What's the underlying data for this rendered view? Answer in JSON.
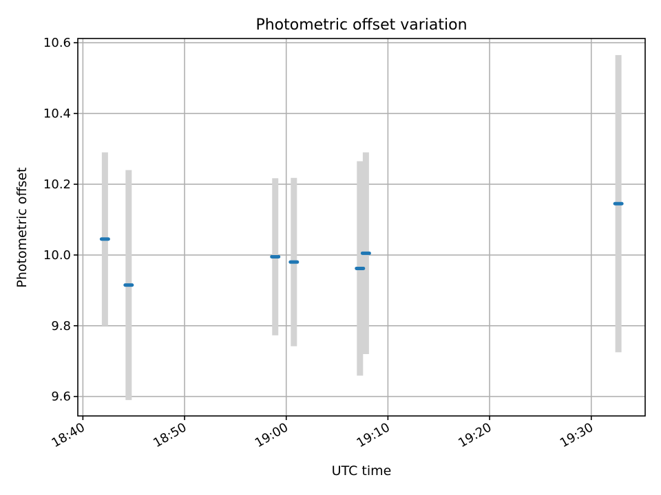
{
  "chart_data": {
    "type": "scatter",
    "title": "Photometric offset variation",
    "xlabel": "UTC time",
    "ylabel": "Photometric offset",
    "x_tick_labels": [
      "18:40",
      "18:50",
      "19:00",
      "19:10",
      "19:20",
      "19:30"
    ],
    "x_tick_minutes": [
      0,
      10,
      20,
      30,
      40,
      50
    ],
    "xlim_minutes_after_18_40": [
      -0.5,
      55.3
    ],
    "y_ticks": [
      9.6,
      9.8,
      10.0,
      10.2,
      10.4,
      10.6
    ],
    "y_tick_labels": [
      "9.6",
      "9.8",
      "10.0",
      "10.2",
      "10.4",
      "10.6"
    ],
    "ylim": [
      9.545,
      10.612
    ],
    "grid": true,
    "colors": {
      "point": "#1f77b4",
      "error_bar": "#d3d3d3"
    },
    "points": [
      {
        "time": "18:42:10",
        "y": 10.045,
        "yerr": 0.245
      },
      {
        "time": "18:44:30",
        "y": 9.915,
        "yerr": 0.325
      },
      {
        "time": "18:58:55",
        "y": 9.995,
        "yerr": 0.222
      },
      {
        "time": "19:00:45",
        "y": 9.98,
        "yerr": 0.238
      },
      {
        "time": "19:07:15",
        "y": 9.962,
        "yerr": 0.303
      },
      {
        "time": "19:07:50",
        "y": 10.005,
        "yerr": 0.285
      },
      {
        "time": "19:32:40",
        "y": 10.145,
        "yerr": 0.42
      }
    ]
  }
}
